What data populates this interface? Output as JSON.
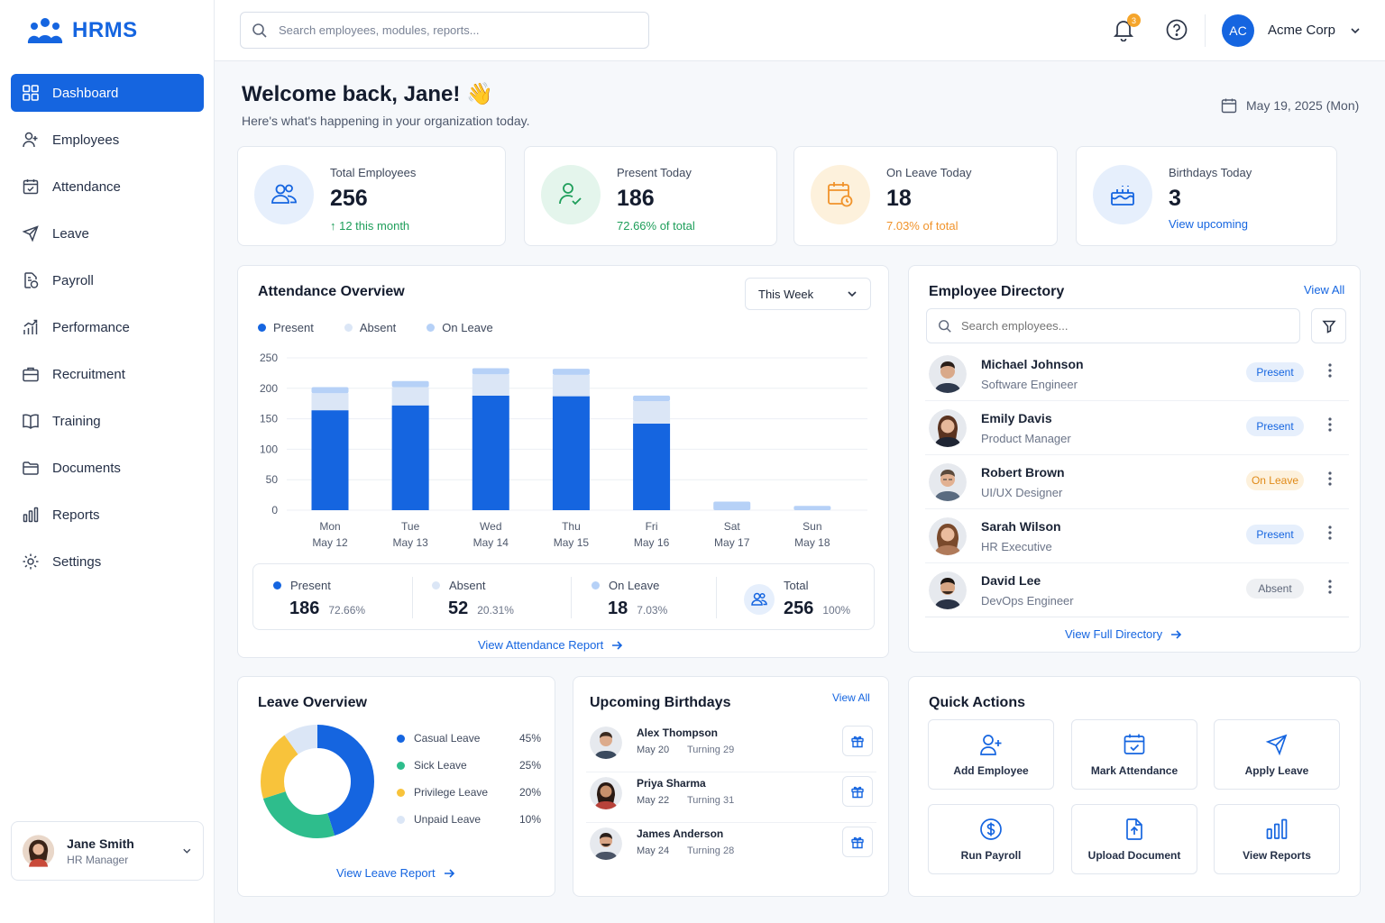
{
  "app": {
    "name": "HRMS"
  },
  "sidebar": {
    "items": [
      {
        "label": "Dashboard",
        "icon": "grid-icon",
        "active": true
      },
      {
        "label": "Employees",
        "icon": "user-plus-icon"
      },
      {
        "label": "Attendance",
        "icon": "calendar-check-icon"
      },
      {
        "label": "Leave",
        "icon": "plane-icon"
      },
      {
        "label": "Payroll",
        "icon": "document-dollar-icon"
      },
      {
        "label": "Performance",
        "icon": "bar-trend-icon"
      },
      {
        "label": "Recruitment",
        "icon": "briefcase-icon"
      },
      {
        "label": "Training",
        "icon": "book-icon"
      },
      {
        "label": "Documents",
        "icon": "folder-icon"
      },
      {
        "label": "Reports",
        "icon": "bar-chart-icon"
      },
      {
        "label": "Settings",
        "icon": "gear-icon"
      }
    ],
    "user": {
      "name": "Jane Smith",
      "role": "HR Manager"
    }
  },
  "header": {
    "search_placeholder": "Search employees, modules, reports...",
    "notification_count": "3",
    "org_initials": "AC",
    "org_name": "Acme Corp"
  },
  "welcome": {
    "title": "Welcome back, Jane! 👋",
    "subtitle": "Here's what's happening in your organization today.",
    "date": "May 19, 2025 (Mon)"
  },
  "stats": [
    {
      "label": "Total Employees",
      "value": "256",
      "sub": "↑ 12 this month",
      "sub_color": "#1e9e5a"
    },
    {
      "label": "Present Today",
      "value": "186",
      "sub": "72.66% of total",
      "sub_color": "#1e9e5a"
    },
    {
      "label": "On Leave Today",
      "value": "18",
      "sub": "7.03% of total",
      "sub_color": "#f0932b"
    },
    {
      "label": "Birthdays Today",
      "value": "3",
      "sub": "View upcoming",
      "sub_color": "#1565e0"
    }
  ],
  "attendance": {
    "title": "Attendance Overview",
    "period": "This Week",
    "legend": [
      "Present",
      "Absent",
      "On Leave"
    ],
    "view_report": "View Attendance Report",
    "summary": [
      {
        "label": "Present",
        "value": "186",
        "pct": "72.66%"
      },
      {
        "label": "Absent",
        "value": "52",
        "pct": "20.31%"
      },
      {
        "label": "On Leave",
        "value": "18",
        "pct": "7.03%"
      },
      {
        "label": "Total",
        "value": "256",
        "pct": "100%"
      }
    ]
  },
  "chart_data": {
    "type": "bar",
    "stacked": true,
    "categories": [
      "Mon May 12",
      "Tue May 13",
      "Wed May 14",
      "Thu May 15",
      "Fri May 16",
      "Sat May 17",
      "Sun May 18"
    ],
    "category_days": [
      "Mon",
      "Tue",
      "Wed",
      "Thu",
      "Fri",
      "Sat",
      "Sun"
    ],
    "category_dates": [
      "May 12",
      "May 13",
      "May 14",
      "May 15",
      "May 16",
      "May 17",
      "May 18"
    ],
    "series": [
      {
        "name": "Present",
        "color": "#1565e0",
        "values": [
          164,
          172,
          188,
          187,
          142,
          0,
          0
        ]
      },
      {
        "name": "Absent",
        "color": "#dbe6f6",
        "values": [
          28,
          30,
          35,
          35,
          37,
          0,
          0
        ]
      },
      {
        "name": "On Leave",
        "color": "#b6d1f7",
        "values": [
          10,
          10,
          10,
          10,
          9,
          14,
          7
        ]
      }
    ],
    "ylim": [
      0,
      250
    ],
    "yticks": [
      0,
      50,
      100,
      150,
      200,
      250
    ],
    "grid": true,
    "legend": "top-left"
  },
  "directory": {
    "title": "Employee Directory",
    "view_all": "View All",
    "search_placeholder": "Search employees...",
    "view_full": "View Full Directory",
    "employees": [
      {
        "name": "Michael Johnson",
        "role": "Software Engineer",
        "status": "Present"
      },
      {
        "name": "Emily Davis",
        "role": "Product Manager",
        "status": "Present"
      },
      {
        "name": "Robert Brown",
        "role": "UI/UX Designer",
        "status": "On Leave"
      },
      {
        "name": "Sarah Wilson",
        "role": "HR Executive",
        "status": "Present"
      },
      {
        "name": "David Lee",
        "role": "DevOps Engineer",
        "status": "Absent"
      }
    ]
  },
  "leave": {
    "title": "Leave Overview",
    "view_report": "View Leave Report",
    "types": [
      {
        "label": "Casual Leave",
        "pct": "45%",
        "value": 45,
        "color": "#1565e0"
      },
      {
        "label": "Sick Leave",
        "pct": "25%",
        "value": 25,
        "color": "#2ebd8c"
      },
      {
        "label": "Privilege Leave",
        "pct": "20%",
        "value": 20,
        "color": "#f8c33b"
      },
      {
        "label": "Unpaid Leave",
        "pct": "10%",
        "value": 10,
        "color": "#dbe6f6"
      }
    ]
  },
  "birthdays": {
    "title": "Upcoming Birthdays",
    "view_all": "View All",
    "items": [
      {
        "name": "Alex Thompson",
        "date": "May 20",
        "turning": "Turning 29"
      },
      {
        "name": "Priya Sharma",
        "date": "May 22",
        "turning": "Turning 31"
      },
      {
        "name": "James Anderson",
        "date": "May 24",
        "turning": "Turning 28"
      }
    ]
  },
  "quick_actions": {
    "title": "Quick Actions",
    "items": [
      {
        "label": "Add Employee",
        "icon": "user-plus-icon"
      },
      {
        "label": "Mark Attendance",
        "icon": "calendar-check-icon"
      },
      {
        "label": "Apply Leave",
        "icon": "plane-icon"
      },
      {
        "label": "Run Payroll",
        "icon": "dollar-icon"
      },
      {
        "label": "Upload Document",
        "icon": "upload-file-icon"
      },
      {
        "label": "View Reports",
        "icon": "bar-chart-icon"
      }
    ]
  }
}
